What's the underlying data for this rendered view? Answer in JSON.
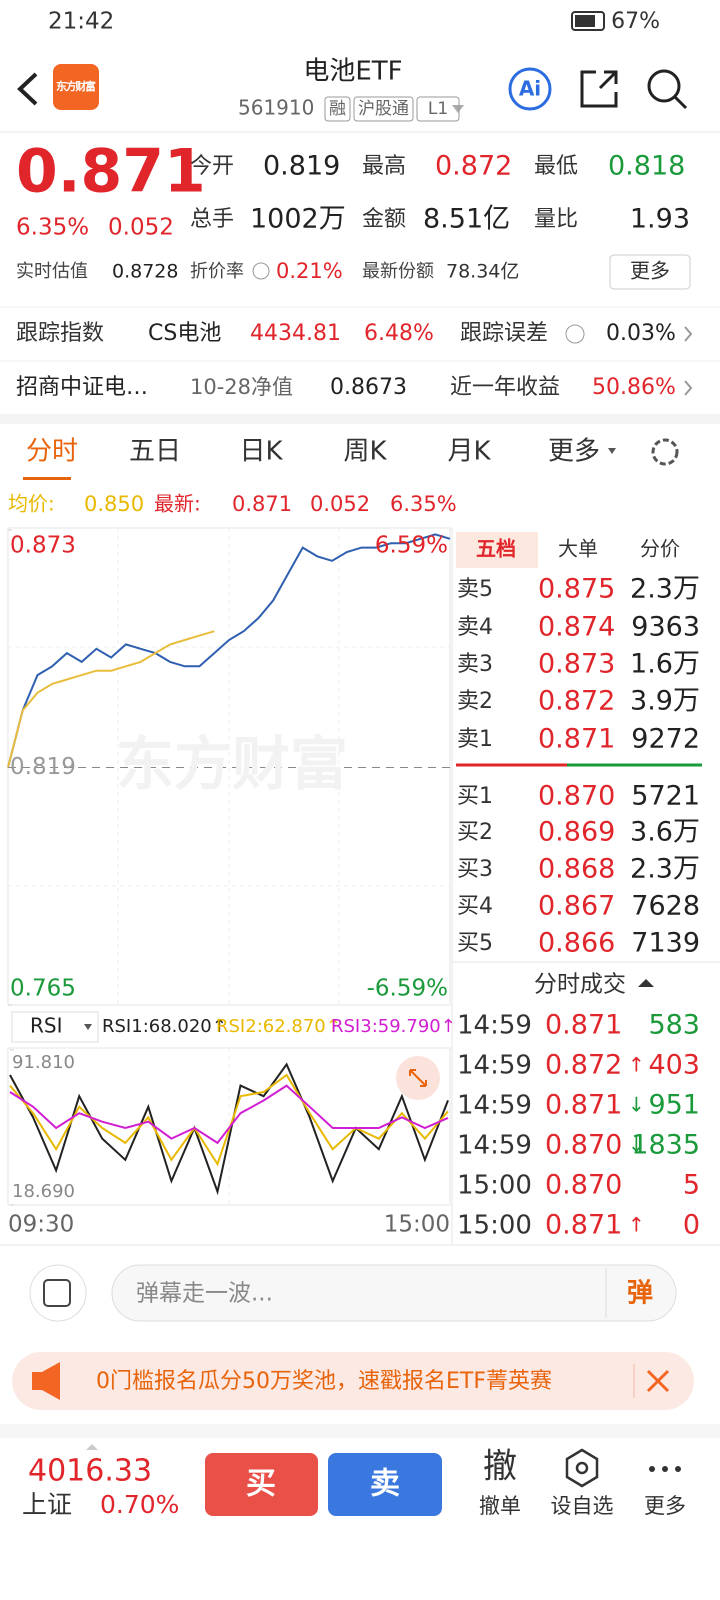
{
  "status_bar": {
    "time": "21:42",
    "battery": "67%"
  },
  "header": {
    "logo": "东方财富",
    "title": "电池ETF",
    "code": "561910",
    "tags": [
      "融",
      "沪股通",
      "L1"
    ],
    "ai": "Ai"
  },
  "quote": {
    "price": "0.871",
    "change_pct": "6.35%",
    "change": "0.052",
    "stats": [
      {
        "label": "今开",
        "value": "0.819"
      },
      {
        "label": "最高",
        "value": "0.872"
      },
      {
        "label": "最低",
        "value": "0.818"
      },
      {
        "label": "总手",
        "value": "1002万"
      },
      {
        "label": "金额",
        "value": "8.51亿"
      },
      {
        "label": "量比",
        "value": "1.93"
      }
    ],
    "extra": [
      {
        "label": "实时估值",
        "value": "0.8728"
      },
      {
        "label": "折价率",
        "value": "0.21%"
      },
      {
        "label": "最新份额",
        "value": "78.34亿"
      }
    ],
    "more": "更多"
  },
  "tracking": {
    "label": "跟踪指数",
    "index": "CS电池",
    "value": "4434.81",
    "pct": "6.48%",
    "error_label": "跟踪误差",
    "error": "0.03%"
  },
  "fund": {
    "name": "招商中证电…",
    "nav_label": "10-28净值",
    "nav": "0.8673",
    "return_label": "近一年收益",
    "return": "50.86%"
  },
  "tabs": [
    "分时",
    "五日",
    "日K",
    "周K",
    "月K",
    "更多"
  ],
  "summary": {
    "avg_label": "均价:",
    "avg": "0.850",
    "latest_label": "最新:",
    "latest": "0.871",
    "change": "0.052",
    "pct": "6.35%"
  },
  "chart_data": [
    {
      "type": "line",
      "watermark": "东方财富",
      "ylim": [
        0.765,
        0.873
      ],
      "yticks": [
        0.873,
        0.819,
        0.765
      ],
      "pct_labels": [
        "6.59%",
        "-6.59%"
      ],
      "x_labels": [
        "09:30",
        "15:00"
      ],
      "series": [
        {
          "color": "#2f5fb0",
          "values": [
            0.819,
            0.832,
            0.84,
            0.842,
            0.845,
            0.843,
            0.846,
            0.844,
            0.847,
            0.846,
            0.845,
            0.843,
            0.842,
            0.842,
            0.845,
            0.848,
            0.85,
            0.853,
            0.857,
            0.863,
            0.869,
            0.867,
            0.866,
            0.868,
            0.869,
            0.869,
            0.87,
            0.87,
            0.871,
            0.872,
            0.871
          ]
        },
        {
          "color": "#e9bd3c",
          "values": [
            0.819,
            0.832,
            0.836,
            0.838,
            0.839,
            0.84,
            0.841,
            0.841,
            0.842,
            0.843,
            0.845,
            0.847,
            0.848,
            0.849,
            0.85
          ]
        }
      ]
    },
    {
      "type": "line",
      "indicator": "RSI",
      "ylim": [
        18.69,
        91.81
      ],
      "yticks": [
        {
          "value": 91.81,
          "label": "91.810"
        },
        {
          "value": 18.69,
          "label": "18.690"
        }
      ],
      "series": [
        {
          "name": "RSI1:68.020↑",
          "color": "#222222",
          "values": [
            80,
            60,
            35,
            70,
            50,
            40,
            65,
            30,
            55,
            25,
            75,
            70,
            85,
            60,
            30,
            55,
            45,
            70,
            40,
            68.02
          ]
        },
        {
          "name": "RSI2:62.870↑",
          "color": "#e9b800",
          "values": [
            75,
            62,
            45,
            65,
            55,
            48,
            60,
            40,
            55,
            38,
            70,
            72,
            80,
            62,
            45,
            55,
            50,
            62,
            50,
            62.87
          ]
        },
        {
          "name": "RSI3:59.790↑",
          "color": "#d21ed2",
          "values": [
            72,
            65,
            55,
            62,
            58,
            55,
            58,
            50,
            55,
            48,
            62,
            68,
            75,
            65,
            55,
            55,
            55,
            60,
            55,
            59.79
          ]
        }
      ]
    }
  ],
  "order_book": {
    "tabs": [
      "五档",
      "大单",
      "分价"
    ],
    "asks": [
      {
        "label": "卖5",
        "price": "0.875",
        "volume": "2.3万"
      },
      {
        "label": "卖4",
        "price": "0.874",
        "volume": "9363"
      },
      {
        "label": "卖3",
        "price": "0.873",
        "volume": "1.6万"
      },
      {
        "label": "卖2",
        "price": "0.872",
        "volume": "3.9万"
      },
      {
        "label": "卖1",
        "price": "0.871",
        "volume": "9272"
      }
    ],
    "bids": [
      {
        "label": "买1",
        "price": "0.870",
        "volume": "5721"
      },
      {
        "label": "买2",
        "price": "0.869",
        "volume": "3.6万"
      },
      {
        "label": "买3",
        "price": "0.868",
        "volume": "2.3万"
      },
      {
        "label": "买4",
        "price": "0.867",
        "volume": "7628"
      },
      {
        "label": "买5",
        "price": "0.866",
        "volume": "7139"
      }
    ]
  },
  "trades": {
    "title": "分时成交",
    "rows": [
      {
        "time": "14:59",
        "price": "0.871",
        "volume": "583",
        "color": "#1a9a3a"
      },
      {
        "time": "14:59",
        "price": "0.872",
        "arrow": "↑",
        "volume": "403",
        "color": "#e0252b"
      },
      {
        "time": "14:59",
        "price": "0.871",
        "arrow": "↓",
        "volume": "951",
        "color": "#1a9a3a"
      },
      {
        "time": "14:59",
        "price": "0.870",
        "arrow": "↓",
        "volume": "1835",
        "color": "#1a9a3a"
      },
      {
        "time": "15:00",
        "price": "0.870",
        "volume": "5",
        "color": "#e0252b"
      },
      {
        "time": "15:00",
        "price": "0.871",
        "arrow": "↑",
        "volume": "0",
        "color": "#e0252b"
      }
    ]
  },
  "comment": {
    "placeholder": "弹幕走一波...",
    "button": "弹"
  },
  "banner": "0门槛报名瓜分50万奖池，速戳报名ETF菁英赛",
  "footer": {
    "index_value": "4016.33",
    "index_name": "上证",
    "index_pct": "0.70%",
    "buy": "买",
    "sell": "卖",
    "actions": [
      {
        "icon": "撤",
        "label": "撤单"
      },
      {
        "label": "设自选"
      },
      {
        "label": "更多"
      }
    ]
  }
}
